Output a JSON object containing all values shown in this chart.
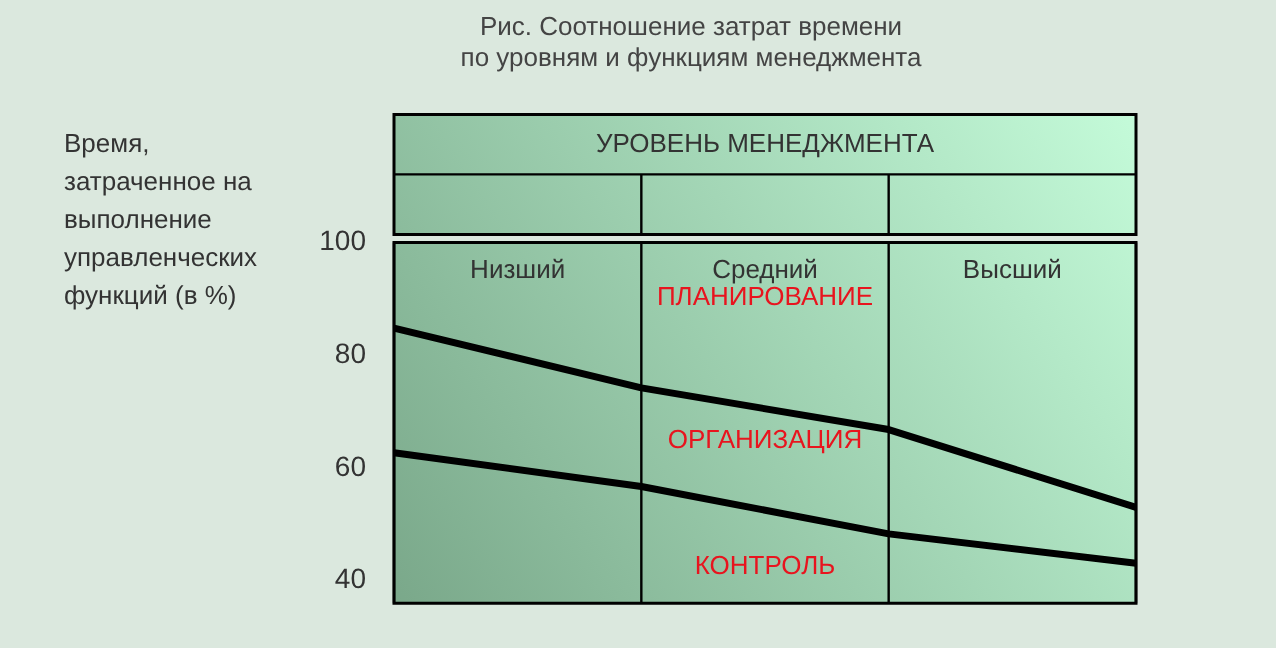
{
  "chart_data": {
    "type": "line",
    "title": "Рис. Соотношение затрат времени\nпо уровням и функциям менеджмента",
    "xlabel": "УРОВЕНЬ МЕНЕДЖМЕНТА",
    "ylabel": "Время, затраченное на выполнение управленческих функций (в %)",
    "categories": [
      null,
      null,
      null,
      null
    ],
    "tick_labels": "y",
    "ylim": [
      36,
      100
    ],
    "yticks": [
      40,
      60,
      80,
      100
    ],
    "series": [
      {
        "color": "#000000",
        "values": [
          84.8,
          74.2,
          66.8,
          53.0
        ]
      },
      {
        "color": "#000000",
        "values": [
          62.7,
          56.7,
          48.3,
          43.1
        ]
      }
    ],
    "annotations": [
      "Низший",
      "Средний",
      "Высший",
      "ПЛАНИРОВАНИЕ",
      "ОРГАНИЗАЦИЯ",
      "КОНТРОЛЬ"
    ],
    "grid": "x",
    "legend": false,
    "marker": "none",
    "line_style": "solid"
  }
}
